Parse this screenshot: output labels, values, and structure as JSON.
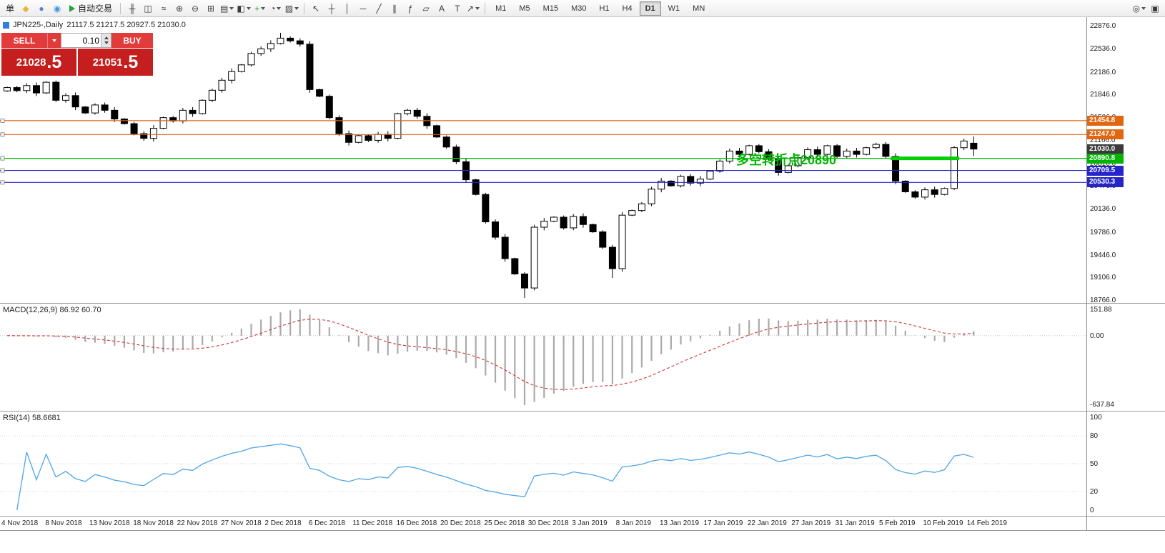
{
  "toolbar": {
    "left_icons": [
      {
        "name": "new-order-icon",
        "glyph": "单",
        "color": "#222222"
      },
      {
        "name": "chart-window-icon",
        "glyph": "◆",
        "color": "#e8b63a"
      },
      {
        "name": "profiles-icon",
        "glyph": "●",
        "color": "#5b7fd4"
      },
      {
        "name": "refresh-icon",
        "glyph": "◉",
        "color": "#3f9bd8"
      }
    ],
    "auto_trading": {
      "label": "自动交易",
      "play_color": "#23a33b"
    },
    "chart_icons": [
      {
        "name": "bar-chart-icon",
        "glyph": "╫"
      },
      {
        "name": "candlestick-icon",
        "glyph": "◫"
      },
      {
        "name": "line-chart-icon",
        "glyph": "≈"
      },
      {
        "name": "zoom-in-icon",
        "glyph": "⊕"
      },
      {
        "name": "zoom-out-icon",
        "glyph": "⊖"
      },
      {
        "name": "tile-windows-icon",
        "glyph": "⊞"
      },
      {
        "name": "indicator-list-icon",
        "glyph": "▤",
        "caret": true
      },
      {
        "name": "chart-type-icon",
        "glyph": "◧",
        "caret": true
      },
      {
        "name": "add-indicator-icon",
        "glyph": "+",
        "color": "#23a33b",
        "caret": true
      },
      {
        "name": "periods-icon",
        "glyph": "◔",
        "caret": true
      },
      {
        "name": "templates-icon",
        "glyph": "▨",
        "caret": true
      }
    ],
    "tool_icons": [
      {
        "name": "cursor-icon",
        "glyph": "↖"
      },
      {
        "name": "crosshair-icon",
        "glyph": "┼"
      },
      {
        "name": "vertical-line-icon",
        "glyph": "│"
      },
      {
        "name": "horizontal-line-icon",
        "glyph": "─"
      },
      {
        "name": "trendline-icon",
        "glyph": "╱"
      },
      {
        "name": "channel-icon",
        "glyph": "∥"
      },
      {
        "name": "fibonacci-icon",
        "glyph": "ƒ"
      },
      {
        "name": "shapes-icon",
        "glyph": "▱"
      },
      {
        "name": "text-icon",
        "glyph": "A"
      },
      {
        "name": "text-label-icon",
        "glyph": "T"
      },
      {
        "name": "arrow-objects-icon",
        "glyph": "↗",
        "caret": true
      }
    ],
    "timeframes": [
      "M1",
      "M5",
      "M15",
      "M30",
      "H1",
      "H4",
      "D1",
      "W1",
      "MN"
    ],
    "active_timeframe": "D1",
    "right_icons": [
      {
        "name": "quick-zoom-icon",
        "glyph": "◎",
        "caret": true
      },
      {
        "name": "window-layout-icon",
        "glyph": "▣"
      }
    ]
  },
  "trade_panel": {
    "sell_label": "SELL",
    "buy_label": "BUY",
    "volume": "0.10",
    "sell_price_main": "21028",
    "sell_price_frac": ".5",
    "buy_price_main": "21051",
    "buy_price_frac": ".5"
  },
  "chart": {
    "title": "JPN225-,Daily",
    "ohlc_text": "21117.5 21217.5 20927.5 21030.0",
    "annotation": {
      "text": "多空转折点20890",
      "color": "#00b400"
    },
    "y_labels": [
      "22876.0",
      "22536.0",
      "22186.0",
      "21846.0",
      "21506.0",
      "21166.0",
      "20816.0",
      "20476.0",
      "20136.0",
      "19786.0",
      "19446.0",
      "19106.0",
      "18766.0"
    ],
    "x_labels": [
      "4 Nov 2018",
      "8 Nov 2018",
      "13 Nov 2018",
      "18 Nov 2018",
      "22 Nov 2018",
      "27 Nov 2018",
      "2 Dec 2018",
      "6 Dec 2018",
      "11 Dec 2018",
      "16 Dec 2018",
      "20 Dec 2018",
      "25 Dec 2018",
      "30 Dec 2018",
      "3 Jan 2019",
      "8 Jan 2019",
      "13 Jan 2019",
      "17 Jan 2019",
      "22 Jan 2019",
      "27 Jan 2019",
      "31 Jan 2019",
      "5 Feb 2019",
      "10 Feb 2019",
      "14 Feb 2019"
    ],
    "price_tags": [
      {
        "value": "21454.8",
        "level": 21454.8,
        "bg": "#e06610",
        "type": "resistance-1"
      },
      {
        "value": "21247.0",
        "level": 21247.0,
        "bg": "#e06610",
        "type": "resistance-2"
      },
      {
        "value": "21030.0",
        "level": 21030.0,
        "bg": "#3a3a3a",
        "type": "current"
      },
      {
        "value": "20890.8",
        "level": 20890.8,
        "bg": "#00b400",
        "type": "pivot"
      },
      {
        "value": "20709.5",
        "level": 20709.5,
        "bg": "#2626c8",
        "type": "support-1"
      },
      {
        "value": "20530.3",
        "level": 20530.3,
        "bg": "#2626c8",
        "type": "support-2"
      }
    ],
    "lines": [
      {
        "level": 21454.8,
        "color": "#e06610"
      },
      {
        "level": 21247.0,
        "color": "#e06610"
      },
      {
        "level": 20890.8,
        "color": "#00c000"
      },
      {
        "level": 20709.5,
        "color": "#2626c8"
      },
      {
        "level": 20530.3,
        "color": "#2626c8"
      }
    ],
    "highlight": {
      "level": 20890.8,
      "from_candle": 91,
      "to_candle": 97,
      "color": "#00d000"
    }
  },
  "macd": {
    "label": "MACD(12,26,9) 86.92 60.70",
    "params": [
      12,
      26,
      9
    ],
    "axis_labels": [
      "151.88",
      "0.00",
      "-637.84"
    ]
  },
  "rsi": {
    "label": "RSI(14) 58.6681",
    "period": 14,
    "axis_labels": [
      "100",
      "80",
      "50",
      "20",
      "0"
    ]
  },
  "chart_data": {
    "type": "candlestick",
    "symbol": "JPN225-",
    "period": "Daily",
    "y_axis": {
      "top": 22876.0,
      "bottom": 18766.0
    },
    "first_open": 21900,
    "closes": [
      21950,
      21905,
      21980,
      21870,
      22030,
      21760,
      21830,
      21660,
      21570,
      21690,
      21610,
      21480,
      21410,
      21260,
      21190,
      21340,
      21500,
      21450,
      21610,
      21560,
      21760,
      21910,
      22060,
      22190,
      22290,
      22460,
      22530,
      22610,
      22690,
      22650,
      22600,
      21920,
      21820,
      21500,
      21260,
      21130,
      21230,
      21160,
      21250,
      21190,
      21560,
      21610,
      21520,
      21380,
      21210,
      21060,
      20840,
      20570,
      20350,
      19940,
      19710,
      19390,
      19160,
      18950,
      19860,
      19950,
      20010,
      19850,
      20020,
      19900,
      19790,
      19560,
      19240,
      20040,
      20110,
      20210,
      20430,
      20550,
      20480,
      20620,
      20520,
      20580,
      20700,
      20850,
      21000,
      20950,
      21080,
      20990,
      20880,
      20680,
      20780,
      20900,
      21020,
      20950,
      21080,
      20920,
      21000,
      20950,
      21050,
      21100,
      20920,
      20550,
      20390,
      20310,
      20420,
      20350,
      20440,
      21050,
      21150,
      21030
    ],
    "last_candle": {
      "open": 21117.5,
      "high": 21217.5,
      "low": 20927.5,
      "close": 21030.0
    },
    "low_overrides": {
      "53": 18800,
      "62": 19100
    },
    "high_overrides": {
      "28": 22770
    },
    "indicators": {
      "macd_current": [
        86.92,
        60.7
      ],
      "rsi_current": 58.6681
    }
  }
}
